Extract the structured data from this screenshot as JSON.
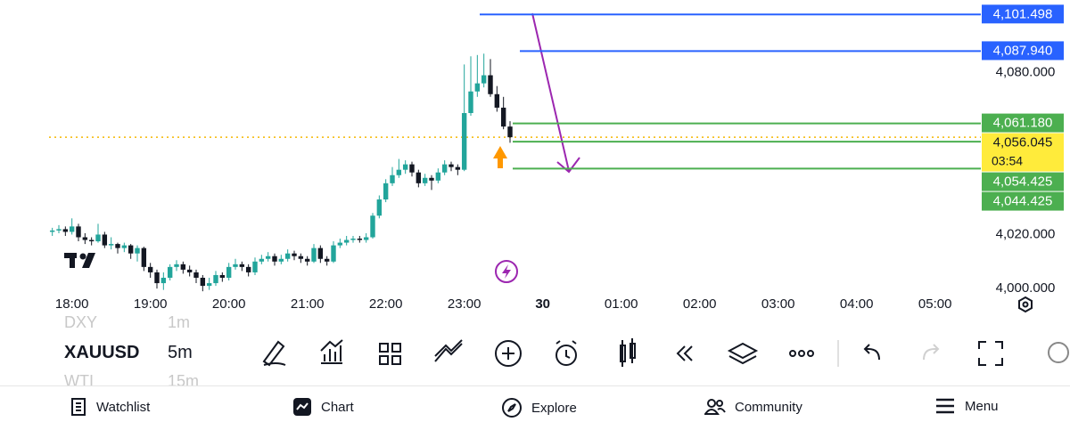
{
  "chart_data": {
    "type": "candlestick",
    "x": [
      1065,
      1070,
      1075,
      1080,
      1085,
      1090,
      1095,
      1100,
      1105,
      1110,
      1115,
      1120,
      1125,
      1130,
      1135,
      1140,
      1145,
      1150,
      1155,
      1160,
      1165,
      1170,
      1175,
      1180,
      1185,
      1190,
      1195,
      1200,
      1205,
      1210,
      1215,
      1220,
      1225,
      1230,
      1235,
      1240,
      1245,
      1250,
      1255,
      1260,
      1265,
      1270,
      1275,
      1280,
      1285,
      1290,
      1295,
      1300,
      1305,
      1310,
      1315,
      1320,
      1325,
      1330,
      1335,
      1340,
      1345,
      1350,
      1355,
      1360,
      1365,
      1370,
      1375,
      1380,
      1385,
      1390,
      1395,
      1400,
      1405,
      1410,
      1415
    ],
    "open": [
      4021,
      4021.5,
      4022,
      4021,
      4023,
      4019,
      4018,
      4017.5,
      4020,
      4016,
      4016.5,
      4015,
      4016,
      4013,
      4015,
      4008,
      4006,
      4002,
      4004,
      4008,
      4009,
      4007,
      4006,
      4004,
      4001,
      4002,
      4005,
      4004,
      4008,
      4009,
      4008,
      4006,
      4010,
      4011,
      4012,
      4010,
      4011,
      4013,
      4012,
      4011,
      4010,
      4015,
      4011,
      4010,
      4016,
      4017,
      4018,
      4018.5,
      4018,
      4019,
      4027,
      4033,
      4039,
      4042,
      4044,
      4046,
      4043,
      4039,
      4041,
      4040,
      4043,
      4046,
      4045,
      4044,
      4065,
      4073,
      4076,
      4079,
      4072,
      4067,
      4060
    ],
    "high": [
      4022.5,
      4023.5,
      4023,
      4026,
      4024,
      4020.5,
      4019,
      4024,
      4021,
      4019,
      4017,
      4017,
      4016.5,
      4016,
      4015.5,
      4009.5,
      4007,
      4006,
      4009,
      4010.5,
      4010,
      4008.5,
      4007,
      4005,
      4004,
      4006.5,
      4006,
      4009.5,
      4011,
      4010,
      4009,
      4011.5,
      4012.5,
      4013.5,
      4013,
      4012.5,
      4014.5,
      4014,
      4013,
      4012,
      4016.5,
      4016,
      4012,
      4017.5,
      4018.5,
      4019.5,
      4019.5,
      4019.5,
      4020.5,
      4028,
      4034.5,
      4040.5,
      4045,
      4048,
      4047.5,
      4047,
      4044,
      4042.5,
      4042,
      4044.5,
      4047.5,
      4047,
      4046,
      4083,
      4086,
      4086.5,
      4087,
      4085,
      4075,
      4071,
      4062
    ],
    "low": [
      4019.5,
      4020.5,
      4019.5,
      4020,
      4017.5,
      4016.5,
      4016,
      4017,
      4015,
      4014.5,
      4013,
      4013.5,
      4011,
      4010,
      4006.5,
      4004,
      4000,
      3999.5,
      4003,
      4006.5,
      4005.5,
      4004.5,
      4002,
      3999,
      3999.5,
      4001,
      4002.5,
      4003,
      4007,
      4006.5,
      4004.5,
      4005,
      4009,
      4010,
      4008.5,
      4009,
      4010,
      4010.5,
      4009.5,
      4008.5,
      4009.5,
      4009.5,
      4008.5,
      4009.5,
      4015,
      4016,
      4017,
      4017,
      4017,
      4018.5,
      4026,
      4032,
      4038,
      4041,
      4042.5,
      4041.5,
      4037.5,
      4038,
      4036.5,
      4039,
      4042,
      4043.5,
      4042,
      4043.5,
      4064,
      4071,
      4074.5,
      4071,
      4065.5,
      4059,
      4054
    ],
    "close": [
      4021.5,
      4022,
      4021,
      4023,
      4019,
      4018,
      4017.5,
      4020,
      4016,
      4016.5,
      4015,
      4016,
      4013,
      4015,
      4008,
      4006,
      4002,
      4004,
      4008,
      4009,
      4007,
      4006,
      4004,
      4001,
      4002,
      4005,
      4004,
      4008,
      4009,
      4008,
      4006,
      4010,
      4011,
      4012,
      4010,
      4011,
      4013,
      4012,
      4011,
      4010,
      4015,
      4011,
      4010,
      4016,
      4017,
      4018,
      4018.5,
      4018,
      4019,
      4027,
      4033,
      4039,
      4042,
      4044,
      4046,
      4043,
      4039,
      4041,
      4040,
      4043,
      4046,
      4045,
      4044,
      4065,
      4073,
      4076,
      4079,
      4072,
      4067,
      4060,
      4056.045
    ],
    "up_color": "#22a59b",
    "down_color": "#131722",
    "xlim": [
      1025,
      1775
    ],
    "xticks": [
      {
        "value": 1080,
        "label": "18:00"
      },
      {
        "value": 1140,
        "label": "19:00"
      },
      {
        "value": 1200,
        "label": "20:00"
      },
      {
        "value": 1260,
        "label": "21:00"
      },
      {
        "value": 1320,
        "label": "22:00"
      },
      {
        "value": 1380,
        "label": "23:00"
      },
      {
        "value": 1440,
        "label": "30"
      },
      {
        "value": 1500,
        "label": "01:00"
      },
      {
        "value": 1560,
        "label": "02:00"
      },
      {
        "value": 1620,
        "label": "03:00"
      },
      {
        "value": 1680,
        "label": "04:00"
      },
      {
        "value": 1740,
        "label": "05:00"
      }
    ],
    "ylim": [
      3995.92,
      4104.07
    ],
    "yticks": [
      {
        "value": 4000,
        "label": "4,000.000"
      },
      {
        "value": 4020,
        "label": "4,020.000"
      },
      {
        "value": 4080,
        "label": "4,080.000"
      }
    ],
    "price_lines": [
      {
        "value": 4101.498,
        "label": "4,101.498",
        "color": "#2962ff"
      },
      {
        "value": 4087.94,
        "label": "4,087.940",
        "color": "#2962ff"
      },
      {
        "value": 4061.18,
        "label": "4,061.180",
        "color": "#4caf50"
      },
      {
        "value": 4054.425,
        "label": "4,054.425",
        "color": "#4caf50"
      },
      {
        "value": 4044.425,
        "label": "4,044.425",
        "color": "#4caf50"
      }
    ],
    "current_price": {
      "value": 4056.045,
      "label": "4,056.045",
      "countdown": "03:54",
      "color": "#ffeb3b"
    }
  },
  "toolbar": {
    "symbols": [
      {
        "symbol": "DXY",
        "interval": "1m"
      },
      {
        "symbol": "XAUUSD",
        "interval": "5m"
      },
      {
        "symbol": "WTI",
        "interval": "15m"
      }
    ]
  },
  "nav": [
    "Watchlist",
    "Chart",
    "Explore",
    "Community",
    "Menu"
  ]
}
